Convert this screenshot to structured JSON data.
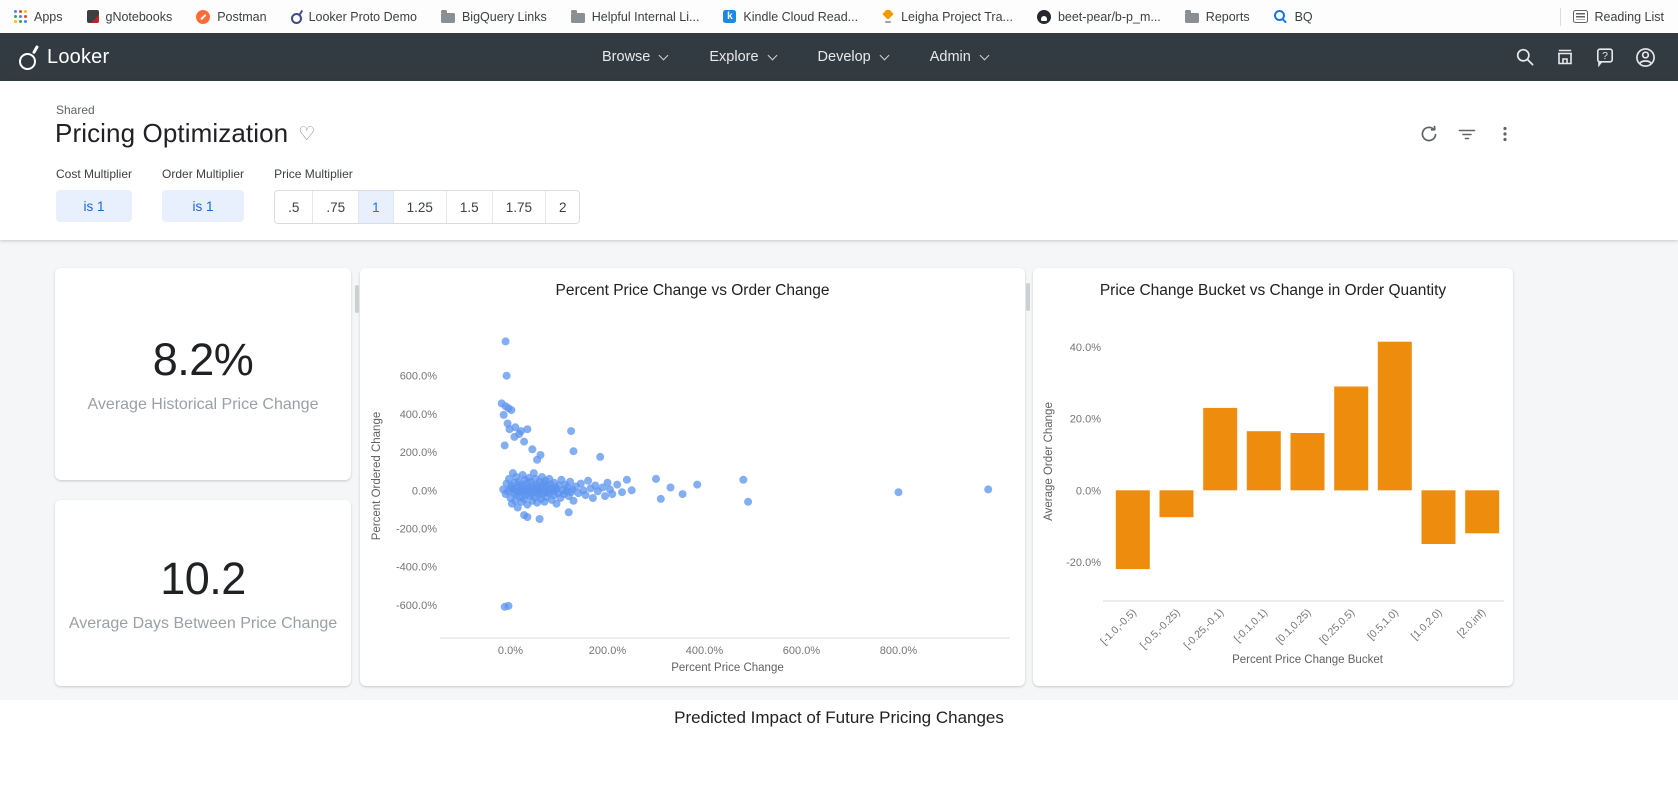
{
  "browser": {
    "bookmarks": [
      {
        "id": "apps",
        "icon": "apps-grid-icon",
        "label": "Apps"
      },
      {
        "id": "gnotebooks",
        "icon": "notebook-icon",
        "label": "gNotebooks"
      },
      {
        "id": "postman",
        "icon": "postman-icon",
        "label": "Postman"
      },
      {
        "id": "looker-proto-demo",
        "icon": "looker-icon",
        "label": "Looker Proto Demo"
      },
      {
        "id": "bigquery-links",
        "icon": "folder-icon",
        "label": "BigQuery Links"
      },
      {
        "id": "helpful-internal-links",
        "icon": "folder-icon",
        "label": "Helpful Internal Li..."
      },
      {
        "id": "kindle-cloud-reader",
        "icon": "kindle-icon",
        "label": "Kindle Cloud Read..."
      },
      {
        "id": "leigha-project-tracker",
        "icon": "leigha-icon",
        "label": "Leigha Project Tra..."
      },
      {
        "id": "beet-pear",
        "icon": "github-icon",
        "label": "beet-pear/b-p_m..."
      },
      {
        "id": "reports",
        "icon": "folder-icon",
        "label": "Reports"
      },
      {
        "id": "bq",
        "icon": "bq-magnifier-icon",
        "label": "BQ"
      }
    ],
    "reading_list_label": "Reading List"
  },
  "nav": {
    "brand": "Looker",
    "menus": [
      "Browse",
      "Explore",
      "Develop",
      "Admin"
    ],
    "icons": [
      "search-icon",
      "marketplace-icon",
      "help-icon",
      "account-icon"
    ]
  },
  "header": {
    "folder": "Shared",
    "title": "Pricing Optimization",
    "icons": [
      "favorite-heart-icon",
      "refresh-icon",
      "filter-icon",
      "more-vert-icon"
    ]
  },
  "filters": {
    "cost": {
      "label": "Cost Multiplier",
      "value": "is 1"
    },
    "order": {
      "label": "Order Multiplier",
      "value": "is 1"
    },
    "price": {
      "label": "Price Multiplier",
      "options": [
        ".5",
        ".75",
        "1",
        "1.25",
        "1.5",
        "1.75",
        "2"
      ],
      "selected": "1"
    }
  },
  "kpis": [
    {
      "value": "8.2%",
      "label": "Average Historical Price Change"
    },
    {
      "value": "10.2",
      "label": "Average Days Between Price Change"
    }
  ],
  "chart_data": [
    {
      "type": "scatter",
      "title": "Percent Price Change vs Order Change",
      "xlabel": "Percent Price Change",
      "ylabel": "Percent Ordered Change",
      "x_ticks": [
        0,
        200,
        400,
        600,
        800
      ],
      "y_ticks": [
        -600,
        -400,
        -200,
        0,
        200,
        400,
        600
      ],
      "xlim": [
        -135,
        1030
      ],
      "ylim": [
        -700,
        850
      ],
      "point_color": "#5b93ee",
      "grid": false,
      "points": [
        [
          -15,
          5
        ],
        [
          -10,
          -20
        ],
        [
          -8,
          35
        ],
        [
          -5,
          -5
        ],
        [
          -3,
          60
        ],
        [
          0,
          10
        ],
        [
          0,
          -40
        ],
        [
          2,
          25
        ],
        [
          3,
          -70
        ],
        [
          5,
          5
        ],
        [
          5,
          90
        ],
        [
          7,
          -15
        ],
        [
          8,
          40
        ],
        [
          10,
          0
        ],
        [
          10,
          -55
        ],
        [
          12,
          70
        ],
        [
          13,
          -25
        ],
        [
          15,
          15
        ],
        [
          15,
          -90
        ],
        [
          17,
          45
        ],
        [
          18,
          -5
        ],
        [
          20,
          30
        ],
        [
          20,
          -35
        ],
        [
          22,
          5
        ],
        [
          23,
          -60
        ],
        [
          25,
          80
        ],
        [
          25,
          -10
        ],
        [
          27,
          20
        ],
        [
          28,
          -45
        ],
        [
          30,
          0
        ],
        [
          30,
          55
        ],
        [
          32,
          -25
        ],
        [
          33,
          35
        ],
        [
          35,
          -5
        ],
        [
          35,
          -75
        ],
        [
          37,
          15
        ],
        [
          38,
          65
        ],
        [
          40,
          -30
        ],
        [
          40,
          5
        ],
        [
          42,
          45
        ],
        [
          43,
          -15
        ],
        [
          45,
          25
        ],
        [
          45,
          -55
        ],
        [
          47,
          0
        ],
        [
          48,
          90
        ],
        [
          50,
          -35
        ],
        [
          50,
          15
        ],
        [
          52,
          60
        ],
        [
          53,
          -10
        ],
        [
          55,
          30
        ],
        [
          55,
          -65
        ],
        [
          57,
          5
        ],
        [
          58,
          -25
        ],
        [
          60,
          45
        ],
        [
          60,
          -5
        ],
        [
          62,
          20
        ],
        [
          63,
          -45
        ],
        [
          65,
          70
        ],
        [
          65,
          0
        ],
        [
          67,
          -20
        ],
        [
          68,
          35
        ],
        [
          70,
          10
        ],
        [
          70,
          -60
        ],
        [
          72,
          50
        ],
        [
          73,
          -10
        ],
        [
          75,
          25
        ],
        [
          75,
          -35
        ],
        [
          78,
          0
        ],
        [
          80,
          60
        ],
        [
          80,
          -15
        ],
        [
          83,
          30
        ],
        [
          85,
          -50
        ],
        [
          85,
          10
        ],
        [
          88,
          -5
        ],
        [
          90,
          40
        ],
        [
          90,
          -25
        ],
        [
          93,
          15
        ],
        [
          95,
          -70
        ],
        [
          95,
          5
        ],
        [
          98,
          -15
        ],
        [
          100,
          25
        ],
        [
          103,
          -40
        ],
        [
          105,
          55
        ],
        [
          108,
          0
        ],
        [
          110,
          -20
        ],
        [
          113,
          30
        ],
        [
          115,
          -5
        ],
        [
          118,
          15
        ],
        [
          120,
          -30
        ],
        [
          123,
          45
        ],
        [
          125,
          -10
        ],
        [
          128,
          5
        ],
        [
          130,
          -55
        ],
        [
          135,
          20
        ],
        [
          140,
          -15
        ],
        [
          145,
          35
        ],
        [
          150,
          0
        ],
        [
          155,
          -25
        ],
        [
          160,
          50
        ],
        [
          165,
          10
        ],
        [
          170,
          -40
        ],
        [
          175,
          25
        ],
        [
          180,
          -5
        ],
        [
          190,
          15
        ],
        [
          195,
          -30
        ],
        [
          200,
          40
        ],
        [
          205,
          5
        ],
        [
          210,
          -20
        ],
        [
          220,
          30
        ],
        [
          230,
          -10
        ],
        [
          240,
          55
        ],
        [
          250,
          0
        ],
        [
          -10,
          780
        ],
        [
          -8,
          600
        ],
        [
          -18,
          455
        ],
        [
          -10,
          440
        ],
        [
          -4,
          430
        ],
        [
          2,
          420
        ],
        [
          -14,
          395
        ],
        [
          -6,
          350
        ],
        [
          10,
          330
        ],
        [
          -2,
          320
        ],
        [
          22,
          310
        ],
        [
          35,
          320
        ],
        [
          18,
          295
        ],
        [
          8,
          280
        ],
        [
          28,
          255
        ],
        [
          -12,
          235
        ],
        [
          45,
          215
        ],
        [
          125,
          310
        ],
        [
          130,
          205
        ],
        [
          185,
          175
        ],
        [
          62,
          185
        ],
        [
          55,
          160
        ],
        [
          -12,
          -610
        ],
        [
          -4,
          -605
        ],
        [
          35,
          -140
        ],
        [
          60,
          -150
        ],
        [
          120,
          -115
        ],
        [
          28,
          -130
        ],
        [
          300,
          60
        ],
        [
          310,
          -45
        ],
        [
          330,
          15
        ],
        [
          355,
          -20
        ],
        [
          385,
          30
        ],
        [
          480,
          55
        ],
        [
          490,
          -60
        ],
        [
          800,
          -10
        ],
        [
          985,
          5
        ]
      ]
    },
    {
      "type": "bar",
      "title": "Price Change Bucket vs Change in Order Quantity",
      "xlabel": "Percent Price Change Bucket",
      "ylabel": "Average Order Change",
      "categories": [
        "[-1.0,-0.5)",
        "[-0.5,-0.25)",
        "[-0.25,-0.1)",
        "[-0.1,0.1)",
        "[0.1,0.25)",
        "[0.25,0.5)",
        "[0.5,1.0)",
        "[1.0,2.0)",
        "[2.0,inf)"
      ],
      "values": [
        -22,
        -7.5,
        23,
        16.5,
        16,
        29,
        41.5,
        -15,
        -12
      ],
      "y_ticks": [
        -20,
        0,
        20,
        40
      ],
      "ylim": [
        -27,
        47
      ],
      "bar_color": "#ee8c0e",
      "grid": false
    }
  ],
  "bottom": {
    "title": "Predicted Impact of Future Pricing Changes"
  },
  "colors": {
    "nav_bg": "#323b41",
    "filter_chip_bg": "#e8f0fe",
    "filter_chip_text": "#1967d2",
    "scatter_point": "#5b93ee",
    "bar_orange": "#ee8c0e",
    "body_bg": "#f5f6f7"
  }
}
